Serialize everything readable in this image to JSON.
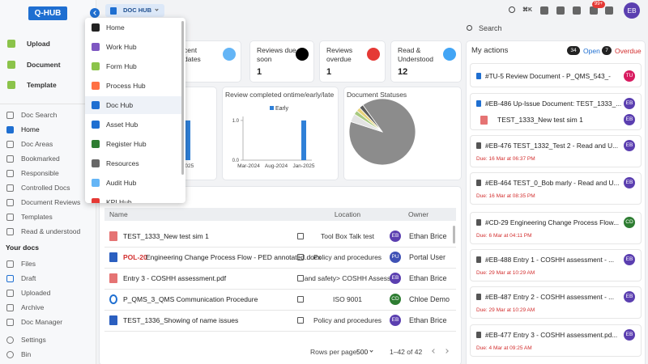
{
  "header": {
    "logo": "Q-HUB",
    "app": "DOC HUB",
    "shortcut": "⌘K",
    "notifications": "99+",
    "avatar": "EB"
  },
  "sidebar": {
    "create": [
      "Upload",
      "Document",
      "Template"
    ],
    "nav": [
      "Doc Search",
      "Home",
      "Doc Areas",
      "Bookmarked",
      "Responsible",
      "Controlled Docs",
      "Document Reviews",
      "Templates",
      "Read & understood"
    ],
    "your_docs_title": "Your docs",
    "your_docs": [
      "Files",
      "Draft",
      "Uploaded",
      "Archive",
      "Doc Manager"
    ],
    "footer": [
      "Settings",
      "Bin"
    ]
  },
  "hub_menu": [
    "Home",
    "Work Hub",
    "Form Hub",
    "Process Hub",
    "Doc Hub",
    "Asset Hub",
    "Register Hub",
    "Resources",
    "Audit Hub",
    "KPI Hub"
  ],
  "search": "Search",
  "stats": [
    {
      "label": [
        "cent",
        "dates"
      ],
      "color": "#64b5f6"
    },
    {
      "label": [
        "Reviews due",
        "soon"
      ],
      "value": 1,
      "color": "#000000"
    },
    {
      "label": [
        "Reviews",
        "overdue"
      ],
      "value": 1,
      "color": "#e53935"
    },
    {
      "label": [
        "Read &",
        "Understood"
      ],
      "value": 12,
      "color": "#42a5f5"
    }
  ],
  "chart_data": [
    {
      "type": "bar",
      "categories": [
        "2025"
      ],
      "series": [
        {
          "values": [
            1
          ],
          "color": "#2f80d8"
        }
      ],
      "ylim": [
        0,
        1.1
      ]
    },
    {
      "type": "bar",
      "title": "Review completed ontime/early/late",
      "categories": [
        "Mar-2024",
        null,
        null,
        null,
        null,
        "Aug-2024",
        null,
        null,
        null,
        null,
        "Jan-2025"
      ],
      "series": [
        {
          "name": "Early",
          "color": "#2f80d8",
          "values": [
            0,
            0,
            0,
            0,
            0,
            0,
            0,
            0,
            0,
            0,
            1
          ]
        }
      ],
      "ylim": [
        0,
        1.1
      ],
      "yticks": [
        {
          "value": 0,
          "label": "0.0"
        },
        {
          "value": 1,
          "label": "1.0"
        }
      ]
    },
    {
      "type": "pie",
      "title": "Document Statuses",
      "values": [
        90,
        4,
        2,
        2,
        2
      ],
      "colors": [
        "#8c8c8c",
        "#e3e3e3",
        "#a8c97f",
        "#e9d47c",
        "#5a5a5a"
      ]
    }
  ],
  "table": {
    "columns": [
      "Name",
      "Location",
      "Owner"
    ],
    "rows": [
      {
        "name": "TEST_1333_New test sim 1",
        "location": "Tool Box Talk test",
        "initials": "EB",
        "owner": "Ethan Brice"
      },
      {
        "code": "POL-20",
        "name": "Engineering Change Process Flow - PED annotated.docx",
        "location": "Policy and procedures",
        "initials": "PU",
        "owner": "Portal User"
      },
      {
        "name": "Entry 3 - COSHH assessment.pdf",
        "location": "and safety> COSHH Assess",
        "initials": "EB",
        "owner": "Ethan Brice"
      },
      {
        "name": "P_QMS_3_QMS Communication Procedure",
        "location": "ISO 9001",
        "initials": "CD",
        "owner": "Chloe Demo"
      },
      {
        "name": "TEST_1336_Showing of name issues",
        "location": "Policy and procedures",
        "initials": "EB",
        "owner": "Ethan Brice"
      }
    ],
    "rows_per_page_label": "Rows per page:",
    "rows_per_page": 500,
    "range": "1–42 of 42"
  },
  "actions": {
    "title": "My actions",
    "open_count": 34,
    "open_label": "Open",
    "overdue_count": 7,
    "overdue_label": "Overdue",
    "items": [
      {
        "title": "#TU-5 Review Document - P_QMS_543_-",
        "initials": "TU"
      },
      {
        "title": "#EB-486 Up-Issue Document: TEST_1333_...",
        "initials": "EB",
        "sub": "TEST_1333_New test sim 1",
        "sub_initials": "EB"
      },
      {
        "title": "#EB-476 TEST_1332_Test 2 - Read and U...",
        "initials": "EB",
        "due": "Due: 16 Mar at 06:37 PM"
      },
      {
        "title": "#EB-464 TEST_0_Bob marly - Read and U...",
        "initials": "EB",
        "due": "Due: 16 Mar at 08:35 PM"
      },
      {
        "title": "#CD-29 Engineering Change Process Flow...",
        "initials": "CD",
        "due": "Due: 6 Mar at 04:11 PM"
      },
      {
        "title": "#EB-488 Entry 1 - COSHH assessment - ...",
        "initials": "EB",
        "due": "Due: 29 Mar at 10:29 AM"
      },
      {
        "title": "#EB-487 Entry 2 - COSHH assessment - ...",
        "initials": "EB",
        "due": "Due: 29 Mar at 10:29 AM"
      },
      {
        "title": "#EB-477 Entry 3 - COSHH assessment.pd...",
        "initials": "EB",
        "due": "Due: 4 Mar at 09:25 AM"
      }
    ]
  }
}
